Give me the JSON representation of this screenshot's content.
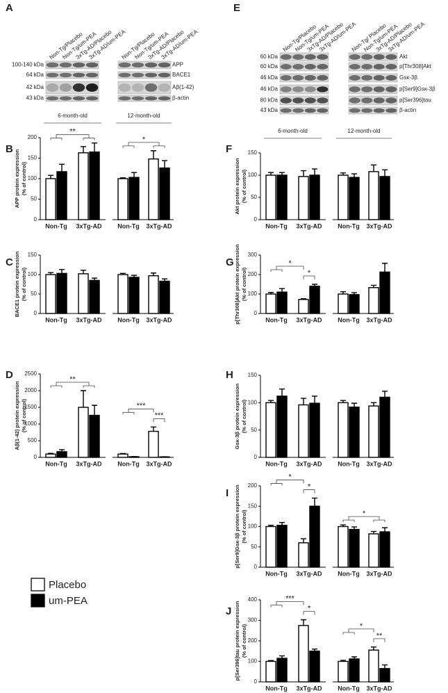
{
  "blots": [
    {
      "panel": "A",
      "lanes": [
        [
          "Non-Tg/Placebo",
          "Non-Tg/um-PEA",
          "3xTg-AD/Placebo",
          "3xTg-AD/um-PEA"
        ],
        [
          "Non-Tg/Placebo",
          "Non-Tg/um-PEA",
          "3xTg-AD/Placebo",
          "3xTg-AD/um-PEA"
        ]
      ],
      "rows": [
        {
          "kda": "100-140 kDa",
          "protein": "APP"
        },
        {
          "kda": "64 kDa",
          "protein": "BACE1"
        },
        {
          "kda": "42 kDa",
          "protein": "Aβ(1-42)"
        },
        {
          "kda": "43 kDa",
          "protein": "β-actin"
        }
      ]
    },
    {
      "panel": "E",
      "lanes": [
        [
          "Non-Tg/Placebo",
          "Non-Tg/um-PEA",
          "3xTg-AD/Placebo",
          "3xTg-AD/um-PEA"
        ],
        [
          "Non-Tg/ Placebo",
          "Non-Tg/um-PEA",
          "3xTg-AD/Placebo",
          "3xTg-AD/um-PEA"
        ]
      ],
      "rows": [
        {
          "kda": "60 kDa",
          "protein": "Akt"
        },
        {
          "kda": "60 kDa",
          "protein": "p[Thr308]Akt"
        },
        {
          "kda": "46 kDa",
          "protein": "Gsκ-3β"
        },
        {
          "kda": "46 kDa",
          "protein": "p[Ser9]Gsκ-3β"
        },
        {
          "kda": "80 kDa",
          "protein": "p[Ser396]tau"
        },
        {
          "kda": "43 kDa",
          "protein": "β-actin"
        }
      ]
    }
  ],
  "legend": [
    {
      "name": "Placebo",
      "color": "#ffffff"
    },
    {
      "name": "um-PEA",
      "color": "#000000"
    }
  ],
  "chart_data": [
    {
      "type": "bar",
      "panel": "B",
      "ylabel": [
        "APP protein expression",
        "(% of control)"
      ],
      "group_labels": [
        "6-month-old",
        "12-month-old"
      ],
      "categories": [
        "Non-Tg",
        "3xTg-AD",
        "Non-Tg",
        "3xTg-AD"
      ],
      "series": [
        {
          "color": "#ffffff",
          "values": [
            100,
            163,
            100,
            148
          ],
          "errors": [
            8,
            15,
            2,
            20
          ]
        },
        {
          "color": "#000000",
          "values": [
            117,
            165,
            103,
            126
          ],
          "errors": [
            18,
            22,
            12,
            18
          ]
        }
      ],
      "ylim": [
        0,
        200
      ],
      "yticks": [
        0,
        50,
        100,
        150,
        200
      ],
      "annotations": [
        {
          "text": "**"
        },
        {
          "text": "*"
        }
      ]
    },
    {
      "type": "bar",
      "panel": "C",
      "ylabel": [
        "BACE1 protein expression",
        "(% of control)"
      ],
      "categories": [
        "Non-Tg",
        "3xTg-AD",
        "Non-Tg",
        "3xTg-AD"
      ],
      "series": [
        {
          "color": "#ffffff",
          "values": [
            100,
            102,
            100,
            97
          ],
          "errors": [
            5,
            9,
            3,
            7
          ]
        },
        {
          "color": "#000000",
          "values": [
            103,
            85,
            93,
            83
          ],
          "errors": [
            10,
            6,
            5,
            6
          ]
        }
      ],
      "ylim": [
        0,
        150
      ],
      "yticks": [
        0,
        50,
        100,
        150
      ],
      "annotations": []
    },
    {
      "type": "bar",
      "panel": "D",
      "ylabel": [
        "Aβ(1-42) protein expression",
        "(% of control)"
      ],
      "categories": [
        "Non-Tg",
        "3xTg-AD",
        "Non-Tg",
        "3xTg-AD"
      ],
      "series": [
        {
          "color": "#ffffff",
          "values": [
            100,
            1500,
            100,
            780
          ],
          "errors": [
            20,
            500,
            15,
            130
          ]
        },
        {
          "color": "#000000",
          "values": [
            170,
            1260,
            20,
            15
          ],
          "errors": [
            60,
            300,
            5,
            5
          ]
        }
      ],
      "ylim": [
        0,
        2500
      ],
      "yticks": [
        0,
        500,
        1000,
        1500,
        2000,
        2500
      ],
      "annotations": [
        {
          "text": "**"
        },
        {
          "text": "***"
        },
        {
          "text": "***"
        }
      ]
    },
    {
      "type": "bar",
      "panel": "F",
      "ylabel": [
        "Akt protein expression",
        "(% of control)"
      ],
      "group_labels": [
        "6-month-old",
        "12-month-old"
      ],
      "categories": [
        "Non-Tg",
        "3xTg-AD",
        "Non-Tg",
        "3xTg-AD"
      ],
      "series": [
        {
          "color": "#ffffff",
          "values": [
            100,
            97,
            100,
            108
          ],
          "errors": [
            6,
            13,
            5,
            15
          ]
        },
        {
          "color": "#000000",
          "values": [
            100,
            100,
            95,
            97
          ],
          "errors": [
            6,
            14,
            8,
            15
          ]
        }
      ],
      "ylim": [
        0,
        150
      ],
      "yticks": [
        0,
        50,
        100,
        150
      ],
      "annotations": []
    },
    {
      "type": "bar",
      "panel": "G",
      "ylabel": [
        "p[Thr308]Akt protein expression",
        "(% of control)"
      ],
      "categories": [
        "Non-Tg",
        "3xTg-AD",
        "Non-Tg",
        "3xTg-AD"
      ],
      "series": [
        {
          "color": "#ffffff",
          "values": [
            100,
            72,
            100,
            133
          ],
          "errors": [
            8,
            4,
            12,
            12
          ]
        },
        {
          "color": "#000000",
          "values": [
            110,
            140,
            97,
            213
          ],
          "errors": [
            18,
            10,
            10,
            45
          ]
        }
      ],
      "ylim": [
        0,
        300
      ],
      "yticks": [
        0,
        100,
        200,
        300
      ],
      "annotations": [
        {
          "text": "*"
        },
        {
          "text": "*"
        }
      ]
    },
    {
      "type": "bar",
      "panel": "H",
      "ylabel": [
        "Gsκ-3β protein expression",
        "(% of control)"
      ],
      "categories": [
        "Non-Tg",
        "3xTg-AD",
        "Non-Tg",
        "3xTg-AD"
      ],
      "series": [
        {
          "color": "#ffffff",
          "values": [
            100,
            96,
            100,
            94
          ],
          "errors": [
            4,
            12,
            4,
            6
          ]
        },
        {
          "color": "#000000",
          "values": [
            112,
            99,
            92,
            110
          ],
          "errors": [
            13,
            13,
            7,
            11
          ]
        }
      ],
      "ylim": [
        0,
        150
      ],
      "yticks": [
        0,
        50,
        100,
        150
      ],
      "annotations": []
    },
    {
      "type": "bar",
      "panel": "I",
      "ylabel": [
        "p[Ser9]Gsκ-3β protein expression",
        "(% of control)"
      ],
      "categories": [
        "Non-Tg",
        "3xTg-AD",
        "Non-Tg",
        "3xTg-AD"
      ],
      "series": [
        {
          "color": "#ffffff",
          "values": [
            100,
            60,
            100,
            82
          ],
          "errors": [
            3,
            10,
            4,
            6
          ]
        },
        {
          "color": "#000000",
          "values": [
            103,
            150,
            93,
            87
          ],
          "errors": [
            7,
            20,
            6,
            10
          ]
        }
      ],
      "ylim": [
        0,
        200
      ],
      "yticks": [
        0,
        50,
        100,
        150,
        200
      ],
      "annotations": [
        {
          "text": "*"
        },
        {
          "text": "*"
        },
        {
          "text": "*"
        }
      ]
    },
    {
      "type": "bar",
      "panel": "J",
      "ylabel": [
        "p[Ser396]tau protein expression",
        "(% of control)"
      ],
      "categories": [
        "Non-Tg",
        "3xTg-AD",
        "Non-Tg",
        "3xTg-AD"
      ],
      "series": [
        {
          "color": "#ffffff",
          "values": [
            100,
            275,
            100,
            155
          ],
          "errors": [
            4,
            28,
            5,
            15
          ]
        },
        {
          "color": "#000000",
          "values": [
            115,
            150,
            112,
            65
          ],
          "errors": [
            12,
            10,
            10,
            18
          ]
        }
      ],
      "ylim": [
        0,
        400
      ],
      "yticks": [
        0,
        100,
        200,
        300,
        400
      ],
      "annotations": [
        {
          "text": "***"
        },
        {
          "text": "*"
        },
        {
          "text": "*"
        },
        {
          "text": "**"
        }
      ]
    }
  ]
}
